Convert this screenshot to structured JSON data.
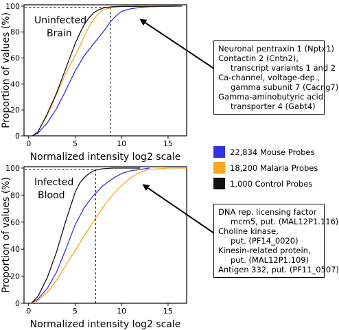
{
  "colors": {
    "mouse": "#3333dd",
    "malaria": "#ffa51e",
    "control": "#111111"
  },
  "legend": {
    "items": [
      {
        "label": "22,834 Mouse Probes",
        "color": "#3333dd"
      },
      {
        "label": "18,200 Malaria Probes",
        "color": "#ffa51e"
      },
      {
        "label": "1,000 Control Probes",
        "color": "#111111"
      }
    ]
  },
  "chart_data": [
    {
      "type": "line",
      "title": "Uninfected Brain",
      "xlabel": "Normalized intensity log2 scale",
      "ylabel": "Proportion of values (%)",
      "xlim": [
        -0.5,
        17
      ],
      "ylim": [
        0,
        101
      ],
      "xticks": [
        0,
        5,
        10,
        15
      ],
      "yticks": [
        0,
        20,
        40,
        60,
        80,
        100
      ],
      "dashed_marker": {
        "x": 8.8,
        "y": 99
      },
      "series": [
        {
          "name": "22,834 Mouse Probes",
          "x": [
            0.4,
            1,
            2,
            3,
            4,
            5,
            6,
            7,
            8,
            8.8,
            9.5,
            10,
            11,
            12,
            13,
            16
          ],
          "y": [
            0,
            2,
            10,
            21,
            35,
            50,
            62,
            71,
            80,
            88,
            93,
            96,
            98,
            99,
            99.5,
            100
          ]
        },
        {
          "name": "18,200 Malaria Probes",
          "x": [
            0.4,
            1,
            2,
            3,
            4,
            5,
            5.5,
            6,
            6.5,
            7,
            7.5,
            8,
            9,
            10,
            16
          ],
          "y": [
            0,
            3,
            16,
            32,
            48,
            62,
            69,
            77,
            84,
            90,
            94,
            97,
            99,
            99.7,
            100
          ]
        },
        {
          "name": "1,000 Control Probes",
          "x": [
            0.4,
            1,
            2,
            3,
            4,
            5,
            5.5,
            6,
            6.5,
            7,
            7.5,
            8,
            9,
            10,
            16.5
          ],
          "y": [
            0,
            3,
            17,
            33,
            52,
            71,
            79,
            86,
            91,
            95,
            97,
            98.5,
            99.5,
            99.8,
            100
          ]
        }
      ],
      "annotation": {
        "lines": [
          {
            "text": "Neuronal pentraxin 1 (Nptx1)",
            "indent": false
          },
          {
            "text": "Contactin 2 (Cntn2),",
            "indent": false
          },
          {
            "text": "transcript variants 1 and 2",
            "indent": true
          },
          {
            "text": "Ca-channel, voltage-dep.,",
            "indent": false
          },
          {
            "text": "gamma subunit 7 (Cacng7)",
            "indent": true
          },
          {
            "text": "Gamma-aminobutyric acid",
            "indent": false
          },
          {
            "text": "transporter 4 (Gabt4)",
            "indent": true
          }
        ]
      }
    },
    {
      "type": "line",
      "title": "Infected Blood",
      "xlabel": "Normalized intensity log2 scale",
      "ylabel": "Proportion of values (%)",
      "xlim": [
        -0.5,
        17
      ],
      "ylim": [
        0,
        101
      ],
      "xticks": [
        0,
        5,
        10,
        15
      ],
      "yticks": [
        0,
        20,
        40,
        60,
        80,
        100
      ],
      "dashed_marker": {
        "x": 7.2,
        "y": 99
      },
      "series": [
        {
          "name": "22,834 Mouse Probes",
          "x": [
            0.3,
            1,
            2,
            3,
            4,
            5,
            6,
            7,
            8,
            9,
            10,
            11,
            12,
            13
          ],
          "y": [
            0,
            3,
            11,
            23,
            40,
            58,
            71,
            80,
            87,
            92,
            96,
            98,
            99,
            100
          ]
        },
        {
          "name": "18,200 Malaria Probes",
          "x": [
            0.3,
            1,
            2,
            3,
            4,
            5,
            6,
            7,
            8,
            9,
            10,
            11,
            12,
            13,
            15,
            17
          ],
          "y": [
            0,
            2,
            8,
            17,
            28,
            39,
            50,
            61,
            71,
            80,
            87,
            93,
            97,
            99,
            100,
            100
          ]
        },
        {
          "name": "1,000 Control Probes",
          "x": [
            0.3,
            1,
            2,
            3,
            4,
            5,
            5.5,
            6,
            6.5,
            7,
            7.5,
            8,
            9,
            12
          ],
          "y": [
            0,
            5,
            19,
            38,
            61,
            82,
            89,
            93,
            96,
            98,
            99,
            99.5,
            100,
            100
          ]
        }
      ],
      "annotation": {
        "lines": [
          {
            "text": "DNA rep. licensing factor",
            "indent": false
          },
          {
            "text": "mcm5, put. (MAL12P1.116)",
            "indent": true
          },
          {
            "text": "Choline kinase,",
            "indent": false
          },
          {
            "text": "put. (PF14_0020)",
            "indent": true
          },
          {
            "text": "Kinesin-related protein,",
            "indent": false
          },
          {
            "text": "put. (MAL12P1.109)",
            "indent": true
          },
          {
            "text": "Antigen 332, put. (PF11_0507)",
            "indent": false
          }
        ]
      }
    }
  ]
}
